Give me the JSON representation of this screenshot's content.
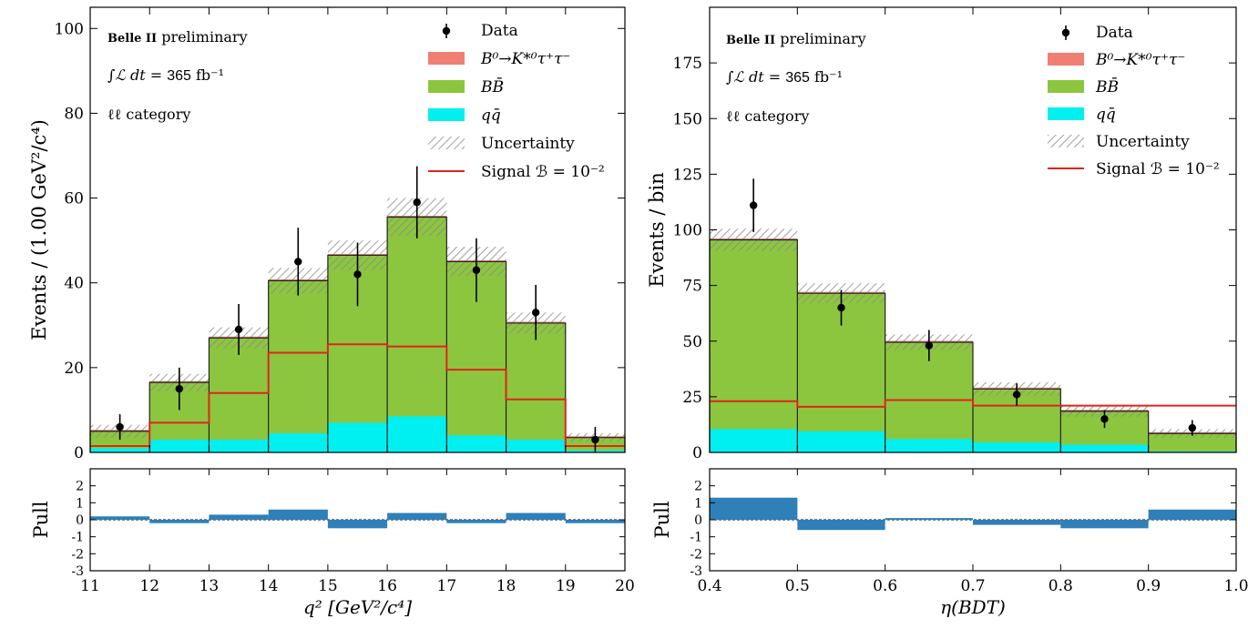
{
  "colors": {
    "signal": "#f07f73",
    "bb": "#8cc63f",
    "qq": "#00f0f0",
    "signal_line": "#e0241b",
    "pull": "#2f7fb8",
    "hatch": "#888888"
  },
  "chart_data": [
    {
      "type": "histogram",
      "ylabel": "Events / (1.00 GeV²/c⁴)",
      "xlabel": "q²  [GeV²/c⁴]",
      "experiment_bold": "Belle II",
      "experiment_rest": " preliminary",
      "lumi_prefix": "∫ℒ dt = ",
      "lumi_value": "365",
      "lumi_unit": " fb⁻¹",
      "category": "ℓℓ category",
      "legend": {
        "data": "Data",
        "signal": "B⁰→K*⁰τ⁺τ⁻",
        "bb": "BB̄",
        "qq": "qq̄",
        "uncertainty": "Uncertainty",
        "signal_line": "Signal ℬ = 10⁻²"
      },
      "bin_edges": [
        11,
        12,
        13,
        14,
        15,
        16,
        17,
        18,
        19,
        20
      ],
      "xlim": [
        11,
        20
      ],
      "ylim": [
        0,
        105
      ],
      "yticks": [
        0,
        20,
        40,
        60,
        80,
        100
      ],
      "xticks": [
        11,
        12,
        13,
        14,
        15,
        16,
        17,
        18,
        19,
        20
      ],
      "qq": [
        1,
        3,
        3,
        4.5,
        7,
        8.5,
        4,
        3,
        0.5
      ],
      "bb_top": [
        5,
        16.5,
        27,
        40.5,
        46.5,
        55.5,
        45,
        30.5,
        3.5
      ],
      "unc": [
        1.5,
        2,
        2.5,
        3,
        3.5,
        4.5,
        3.5,
        2.5,
        1
      ],
      "signal_line": [
        1.5,
        7,
        14,
        23.5,
        25.5,
        25,
        19.5,
        12.5,
        1.5
      ],
      "data_y": [
        6,
        15,
        29,
        45,
        42,
        59,
        43,
        33,
        3
      ],
      "data_err": [
        3,
        5,
        6,
        8,
        7.5,
        8.5,
        7.5,
        6.5,
        3
      ],
      "pull": {
        "ylabel": "Pull",
        "ylim": [
          -3,
          3
        ],
        "yticks": [
          2,
          1,
          0,
          -1,
          -2,
          -3
        ],
        "values": [
          0.2,
          -0.2,
          0.3,
          0.6,
          -0.5,
          0.4,
          -0.2,
          0.4,
          -0.2
        ]
      }
    },
    {
      "type": "histogram",
      "ylabel": "Events / bin",
      "xlabel": "η(BDT)",
      "experiment_bold": "Belle II",
      "experiment_rest": " preliminary",
      "lumi_prefix": "∫ℒ dt = ",
      "lumi_value": "365",
      "lumi_unit": " fb⁻¹",
      "category": "ℓℓ category",
      "legend": {
        "data": "Data",
        "signal": "B⁰→K*⁰τ⁺τ⁻",
        "bb": "BB̄",
        "qq": "qq̄",
        "uncertainty": "Uncertainty",
        "signal_line": "Signal ℬ = 10⁻²"
      },
      "bin_edges": [
        0.4,
        0.5,
        0.6,
        0.7,
        0.8,
        0.9,
        1.0
      ],
      "xlim": [
        0.4,
        1.0
      ],
      "ylim": [
        0,
        200
      ],
      "yticks": [
        0,
        25,
        50,
        75,
        100,
        125,
        150,
        175
      ],
      "xticks": [
        0.4,
        0.5,
        0.6,
        0.7,
        0.8,
        0.9,
        1.0
      ],
      "qq": [
        10.5,
        9.5,
        6,
        4.5,
        3.5,
        0.5
      ],
      "bb_top": [
        95.5,
        71.5,
        49.5,
        28.5,
        18.5,
        8.5
      ],
      "unc": [
        5,
        4.5,
        3.5,
        3,
        2.5,
        2
      ],
      "signal_line": [
        23,
        20.5,
        23.5,
        21,
        21,
        21
      ],
      "data_y": [
        111,
        65,
        48,
        26,
        15,
        11
      ],
      "data_err": [
        12,
        8,
        7,
        5,
        4,
        3.5
      ],
      "pull": {
        "ylabel": "Pull",
        "ylim": [
          -3,
          3
        ],
        "yticks": [
          2,
          1,
          0,
          -1,
          -2,
          -3
        ],
        "values": [
          1.3,
          -0.6,
          0.1,
          -0.3,
          -0.5,
          0.6
        ]
      }
    }
  ]
}
